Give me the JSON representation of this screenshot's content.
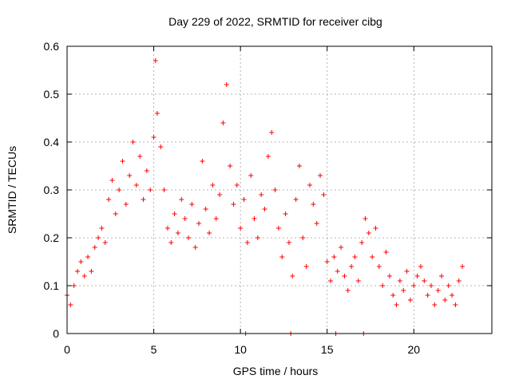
{
  "chart_data": {
    "type": "scatter",
    "title": "Day 229 of 2022, SRMTID for receiver cibg",
    "xlabel": "GPS time / hours",
    "ylabel": "SRMTID / TECUs",
    "xlim": [
      0,
      24.5
    ],
    "ylim": [
      0,
      0.6
    ],
    "xticks": [
      0,
      5,
      10,
      15,
      20
    ],
    "xtick_labels": [
      "0",
      "5",
      "10",
      "15",
      "20"
    ],
    "yticks": [
      0,
      0.1,
      0.2,
      0.3,
      0.4,
      0.5,
      0.6
    ],
    "ytick_labels": [
      "0",
      "0.1",
      "0.2",
      "0.3",
      "0.4",
      "0.5",
      "0.6"
    ],
    "grid": true,
    "marker": "+",
    "series": [
      {
        "name": "SRMTID",
        "color": "#ff0000",
        "x": [
          0.0,
          0.2,
          0.4,
          0.6,
          0.8,
          1.0,
          1.2,
          1.4,
          1.6,
          1.8,
          2.0,
          2.2,
          2.4,
          2.6,
          2.8,
          3.0,
          3.2,
          3.4,
          3.6,
          3.8,
          4.0,
          4.2,
          4.4,
          4.6,
          4.8,
          5.0,
          5.1,
          5.2,
          5.4,
          5.6,
          5.8,
          6.0,
          6.2,
          6.4,
          6.6,
          6.8,
          7.0,
          7.2,
          7.4,
          7.6,
          7.8,
          8.0,
          8.2,
          8.4,
          8.6,
          8.8,
          9.0,
          9.2,
          9.4,
          9.6,
          9.8,
          10.0,
          10.2,
          10.4,
          10.6,
          10.8,
          11.0,
          11.2,
          11.4,
          11.6,
          11.8,
          12.0,
          12.2,
          12.4,
          12.6,
          12.8,
          13.0,
          13.2,
          13.4,
          13.6,
          13.8,
          14.0,
          14.2,
          14.4,
          14.6,
          14.8,
          15.0,
          15.2,
          15.4,
          15.6,
          15.8,
          16.0,
          16.2,
          16.4,
          16.6,
          16.8,
          17.0,
          17.2,
          17.4,
          17.6,
          17.8,
          18.0,
          18.2,
          18.4,
          18.6,
          18.8,
          19.0,
          19.2,
          19.4,
          19.6,
          19.8,
          20.0,
          20.2,
          20.4,
          20.6,
          20.8,
          21.0,
          21.2,
          21.4,
          21.6,
          21.8,
          22.0,
          22.2,
          22.4,
          22.6,
          22.8,
          10.3,
          12.9,
          15.5,
          17.1
        ],
        "y": [
          0.08,
          0.06,
          0.1,
          0.13,
          0.15,
          0.12,
          0.16,
          0.13,
          0.18,
          0.2,
          0.22,
          0.19,
          0.28,
          0.32,
          0.25,
          0.3,
          0.36,
          0.27,
          0.33,
          0.4,
          0.31,
          0.37,
          0.28,
          0.34,
          0.3,
          0.41,
          0.57,
          0.46,
          0.39,
          0.3,
          0.22,
          0.19,
          0.25,
          0.21,
          0.28,
          0.24,
          0.2,
          0.27,
          0.18,
          0.23,
          0.36,
          0.26,
          0.21,
          0.31,
          0.24,
          0.29,
          0.44,
          0.52,
          0.35,
          0.27,
          0.31,
          0.22,
          0.28,
          0.19,
          0.33,
          0.24,
          0.2,
          0.29,
          0.26,
          0.37,
          0.42,
          0.3,
          0.22,
          0.16,
          0.25,
          0.19,
          0.12,
          0.28,
          0.35,
          0.2,
          0.14,
          0.31,
          0.27,
          0.23,
          0.33,
          0.29,
          0.15,
          0.11,
          0.16,
          0.13,
          0.18,
          0.12,
          0.09,
          0.14,
          0.16,
          0.11,
          0.19,
          0.24,
          0.21,
          0.16,
          0.22,
          0.14,
          0.1,
          0.17,
          0.12,
          0.08,
          0.06,
          0.11,
          0.09,
          0.13,
          0.07,
          0.1,
          0.12,
          0.14,
          0.11,
          0.08,
          0.1,
          0.06,
          0.09,
          0.12,
          0.07,
          0.1,
          0.08,
          0.06,
          0.11,
          0.14,
          0.0,
          0.0,
          0.0,
          0.0
        ]
      }
    ]
  }
}
